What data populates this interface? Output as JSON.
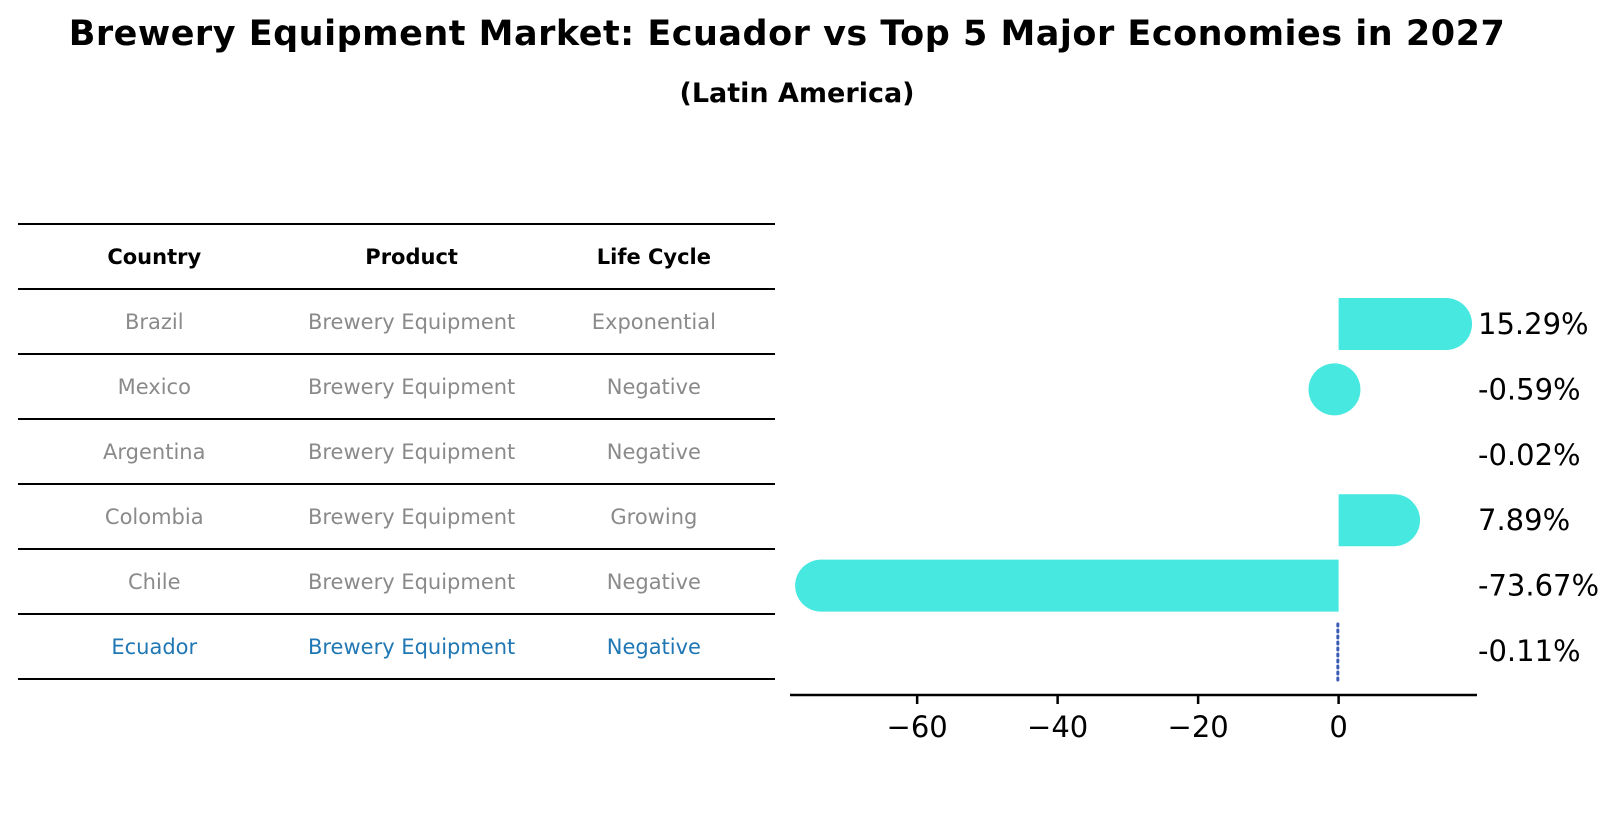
{
  "title": "Brewery Equipment Market: Ecuador vs Top 5 Major Economies in 2027",
  "subtitle": "(Latin America)",
  "colors": {
    "bar": "#46E8E0",
    "highlight_text": "#1F77B4",
    "highlight_line": "#3B5BB5",
    "row_text": "#8A8A8A",
    "header_text": "#000000",
    "axis": "#000000"
  },
  "table": {
    "headers": [
      "Country",
      "Product",
      "Life Cycle"
    ],
    "rows": [
      {
        "country": "Brazil",
        "product": "Brewery Equipment",
        "life_cycle": "Exponential",
        "highlight": false
      },
      {
        "country": "Mexico",
        "product": "Brewery Equipment",
        "life_cycle": "Negative",
        "highlight": false
      },
      {
        "country": "Argentina",
        "product": "Brewery Equipment",
        "life_cycle": "Negative",
        "highlight": false
      },
      {
        "country": "Colombia",
        "product": "Brewery Equipment",
        "life_cycle": "Growing",
        "highlight": false
      },
      {
        "country": "Chile",
        "product": "Brewery Equipment",
        "life_cycle": "Negative",
        "highlight": false
      },
      {
        "country": "Ecuador",
        "product": "Brewery Equipment",
        "life_cycle": "Negative",
        "highlight": true
      }
    ]
  },
  "chart_data": {
    "type": "bar",
    "orientation": "horizontal",
    "title": "Brewery Equipment Market: Ecuador vs Top 5 Major Economies in 2027",
    "subtitle": "(Latin America)",
    "categories": [
      "Brazil",
      "Mexico",
      "Argentina",
      "Colombia",
      "Chile",
      "Ecuador"
    ],
    "values": [
      15.29,
      -0.59,
      -0.02,
      7.89,
      -73.67,
      -0.11
    ],
    "value_labels": [
      "15.29%",
      "-0.59%",
      "-0.02%",
      "7.89%",
      "-73.67%",
      "-0.11%"
    ],
    "xlabel": "",
    "ylabel": "",
    "xticks": [
      -60,
      -40,
      -20,
      0
    ],
    "xlim": [
      -78.1,
      19.7
    ],
    "highlight_index": 5,
    "grid": false,
    "legend": "none"
  }
}
